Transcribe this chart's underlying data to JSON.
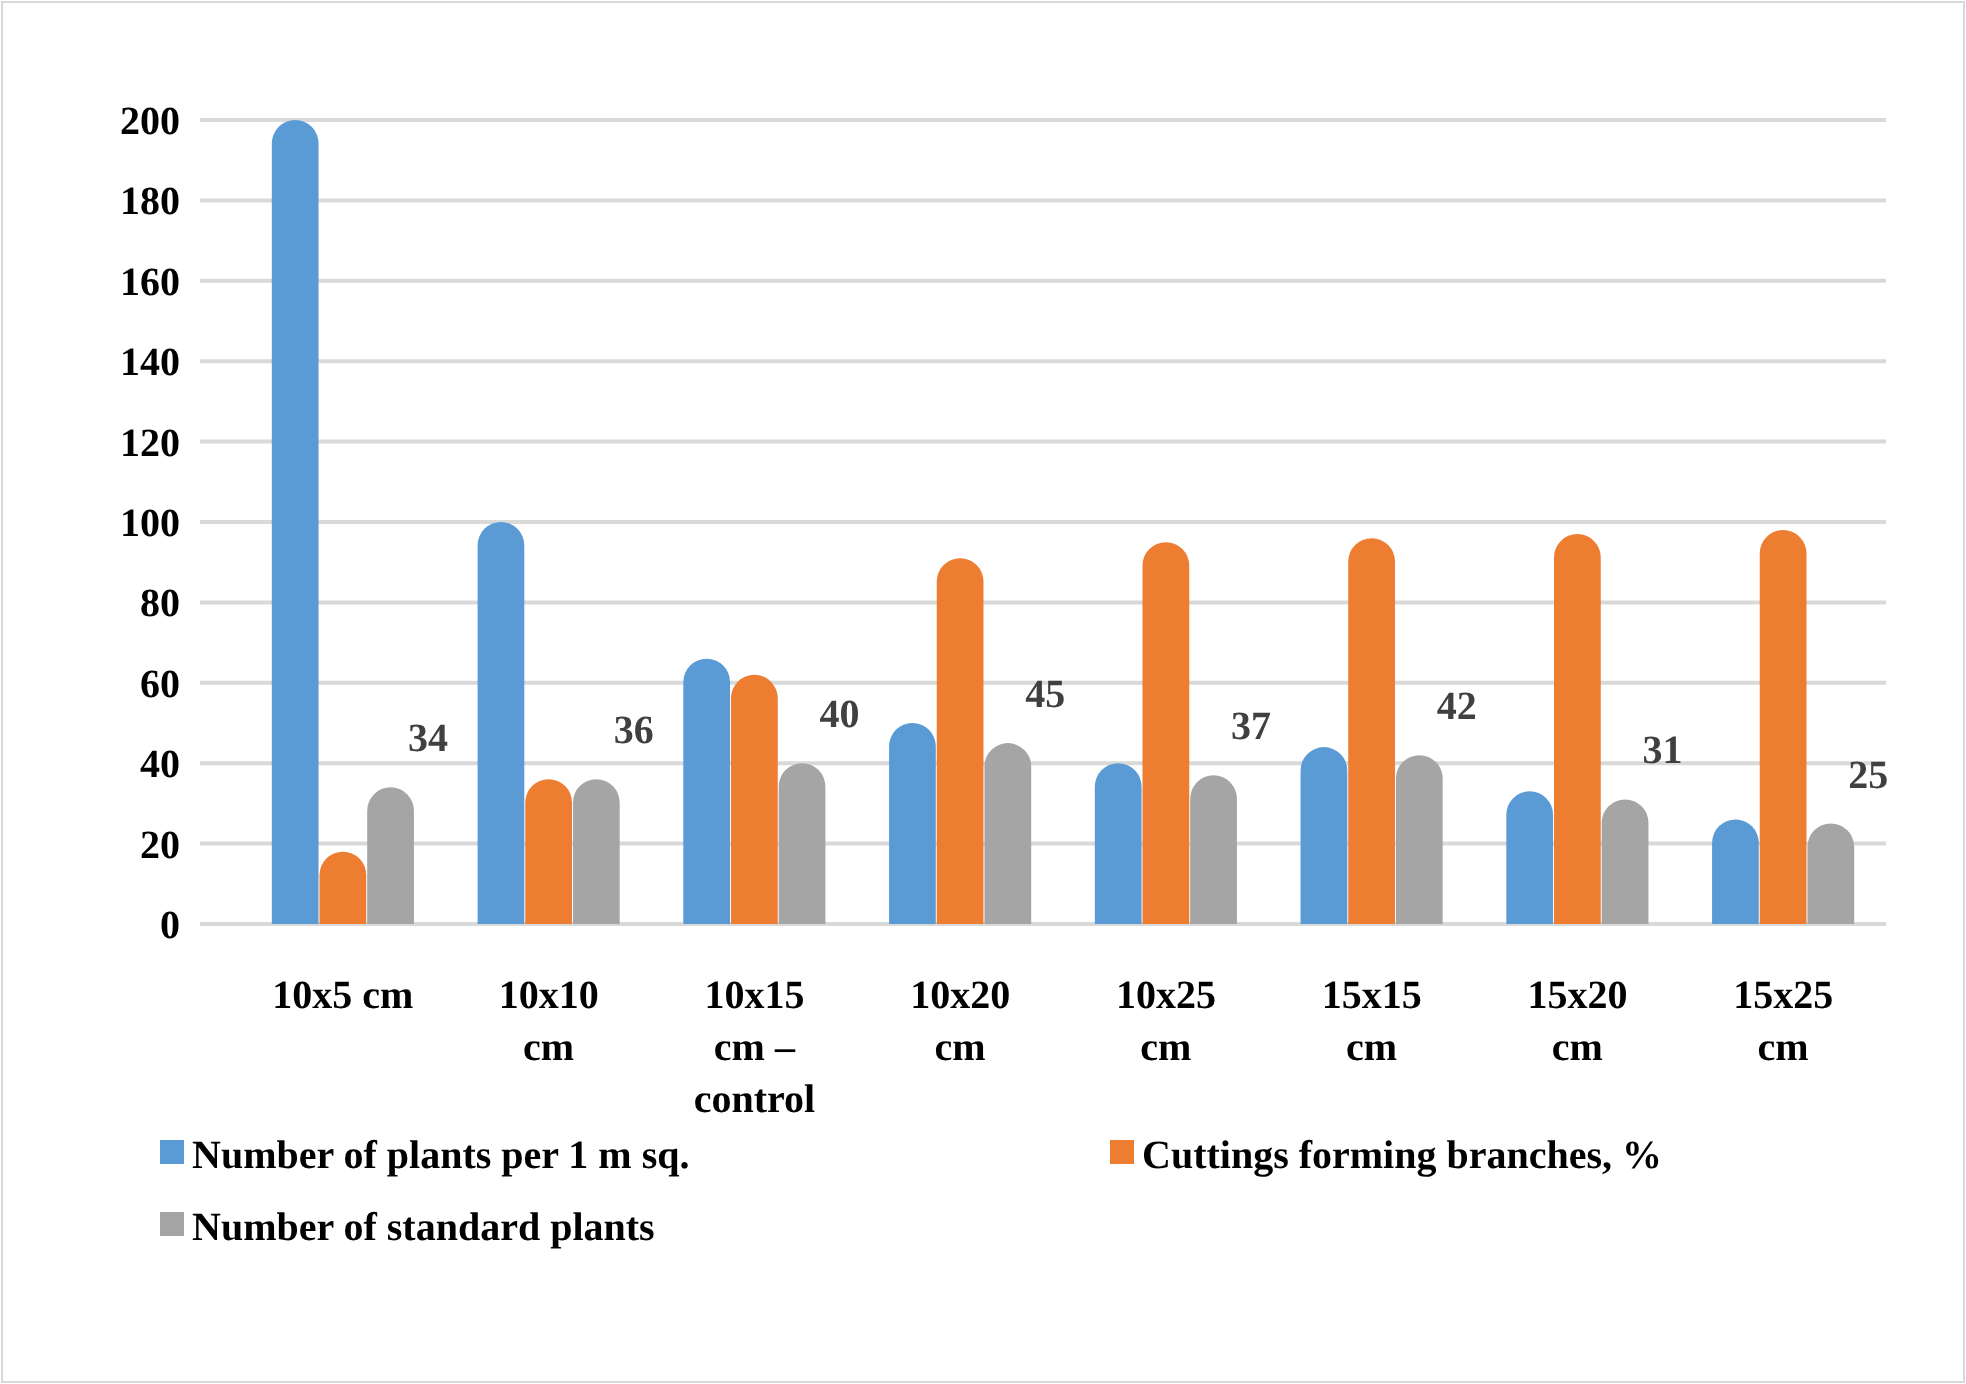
{
  "chart_data": {
    "type": "bar",
    "categories": [
      "10x5 cm",
      "10x10 cm",
      "10x15 cm – control",
      "10x20 cm",
      "10x25 cm",
      "15x15 cm",
      "15x20 cm",
      "15x25 cm"
    ],
    "series": [
      {
        "name": "Number of plants per 1 m sq.",
        "color": "#5b9bd5",
        "values": [
          200,
          100,
          66,
          50,
          40,
          44,
          33,
          26
        ]
      },
      {
        "name": "Cuttings forming branches, %",
        "color": "#ed7d31",
        "values": [
          18,
          36,
          62,
          91,
          95,
          96,
          97,
          98
        ]
      },
      {
        "name": "Number of standard plants",
        "color": "#a5a5a5",
        "values": [
          34,
          36,
          40,
          45,
          37,
          42,
          31,
          25
        ],
        "value_labels": [
          "34",
          "36",
          "40",
          "45",
          "37",
          "42",
          "31",
          "25"
        ]
      }
    ],
    "ylim": [
      0,
      200
    ],
    "yticks": [
      0,
      20,
      40,
      60,
      80,
      100,
      120,
      140,
      160,
      180,
      200
    ],
    "grid": "y",
    "legend": "bottom"
  }
}
